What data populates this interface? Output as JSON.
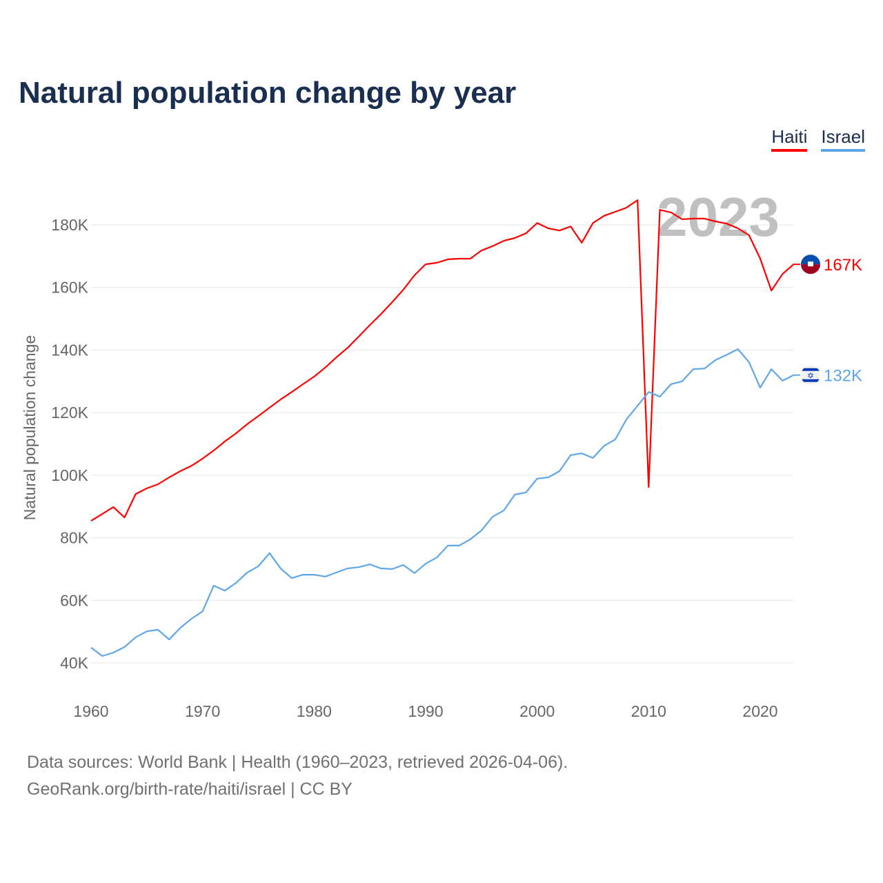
{
  "chart_data": {
    "type": "line",
    "title": "Natural population change by year",
    "xlabel": "",
    "ylabel": "Natural population change",
    "xlim": [
      1960,
      2023
    ],
    "ylim": [
      30000,
      195000
    ],
    "x_ticks": [
      1960,
      1970,
      1980,
      1990,
      2000,
      2010,
      2020
    ],
    "y_ticks": [
      40000,
      60000,
      80000,
      100000,
      120000,
      140000,
      160000,
      180000
    ],
    "y_tick_labels": [
      "40K",
      "60K",
      "80K",
      "100K",
      "120K",
      "140K",
      "160K",
      "180K"
    ],
    "x_tick_labels": [
      "1960",
      "1970",
      "1980",
      "1990",
      "2000",
      "2010",
      "2020"
    ],
    "grid": true,
    "legend_position": "top-right",
    "year_annotation": "2023",
    "x": [
      1960,
      1961,
      1962,
      1963,
      1964,
      1965,
      1966,
      1967,
      1968,
      1969,
      1970,
      1971,
      1972,
      1973,
      1974,
      1975,
      1976,
      1977,
      1978,
      1979,
      1980,
      1981,
      1982,
      1983,
      1984,
      1985,
      1986,
      1987,
      1988,
      1989,
      1990,
      1991,
      1992,
      1993,
      1994,
      1995,
      1996,
      1997,
      1998,
      1999,
      2000,
      2001,
      2002,
      2003,
      2004,
      2005,
      2006,
      2007,
      2008,
      2009,
      2010,
      2011,
      2012,
      2013,
      2014,
      2015,
      2016,
      2017,
      2018,
      2019,
      2020,
      2021,
      2022,
      2023
    ],
    "series": [
      {
        "name": "Haiti",
        "color": "#ff0000",
        "end_label": "167K",
        "values": [
          85400,
          87600,
          89800,
          86500,
          94000,
          95800,
          97100,
          99300,
          101300,
          103000,
          105300,
          107900,
          110800,
          113400,
          116300,
          118900,
          121600,
          124200,
          126600,
          129100,
          131500,
          134400,
          137700,
          140700,
          144300,
          148000,
          151500,
          155300,
          159300,
          163900,
          167400,
          167900,
          169000,
          169200,
          169200,
          171800,
          173200,
          174900,
          175800,
          177300,
          180600,
          178900,
          178200,
          179500,
          174300,
          180600,
          182900,
          184200,
          185500,
          187900,
          96200,
          184800,
          184000,
          181800,
          182000,
          182000,
          181100,
          180400,
          178900,
          176700,
          169200,
          159000,
          164300,
          167400
        ]
      },
      {
        "name": "Israel",
        "color": "#5ea6ea",
        "end_label": "132K",
        "values": [
          44900,
          42200,
          43300,
          45100,
          48200,
          50100,
          50600,
          47500,
          51200,
          54100,
          56500,
          64700,
          63100,
          65600,
          68900,
          70900,
          75100,
          70200,
          67100,
          68200,
          68200,
          67600,
          68900,
          70200,
          70600,
          71500,
          70200,
          70000,
          71300,
          68700,
          71700,
          73700,
          77500,
          77500,
          79500,
          82300,
          86700,
          88700,
          93800,
          94500,
          98900,
          99300,
          101300,
          106400,
          107000,
          105500,
          109400,
          111400,
          117800,
          122200,
          126600,
          125100,
          129100,
          130000,
          133900,
          134100,
          136800,
          138500,
          140300,
          136100,
          128000,
          133900,
          130200,
          132000
        ]
      }
    ]
  },
  "footer": {
    "line1": "Data sources: World Bank | Health (1960–2023, retrieved 2026-04-06).",
    "line2": "GeoRank.org/birth-rate/haiti/israel | CC BY"
  }
}
